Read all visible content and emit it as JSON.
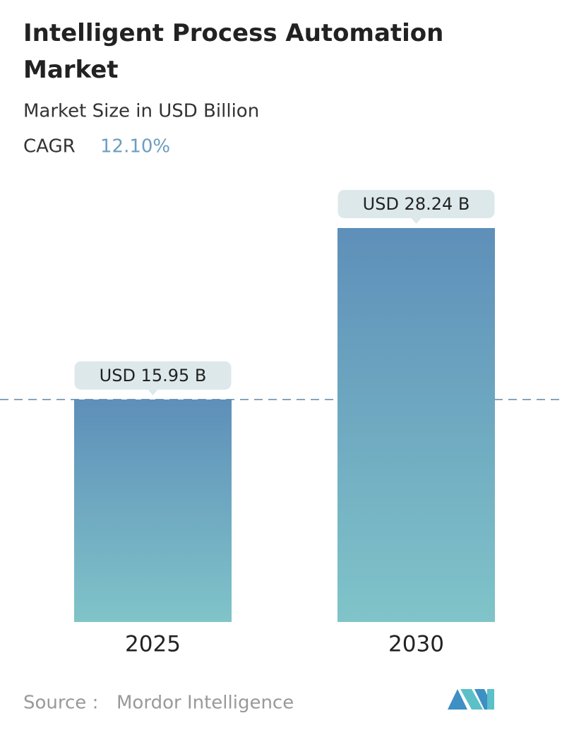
{
  "chart_data": {
    "type": "bar",
    "title": "Intelligent Process Automation Market",
    "subtitle": "Market Size in USD Billion",
    "cagr_label": "CAGR",
    "cagr": "12.10%",
    "categories": [
      "2025",
      "2030"
    ],
    "values": [
      15.95,
      28.24
    ],
    "value_labels": [
      "USD 15.95 B",
      "USD 28.24 B"
    ],
    "ylim": [
      0,
      28.24
    ],
    "color_top": "#5e8fb9",
    "color_bottom": "#80c4c9",
    "source_label": "Source :",
    "source": "Mordor Intelligence"
  }
}
